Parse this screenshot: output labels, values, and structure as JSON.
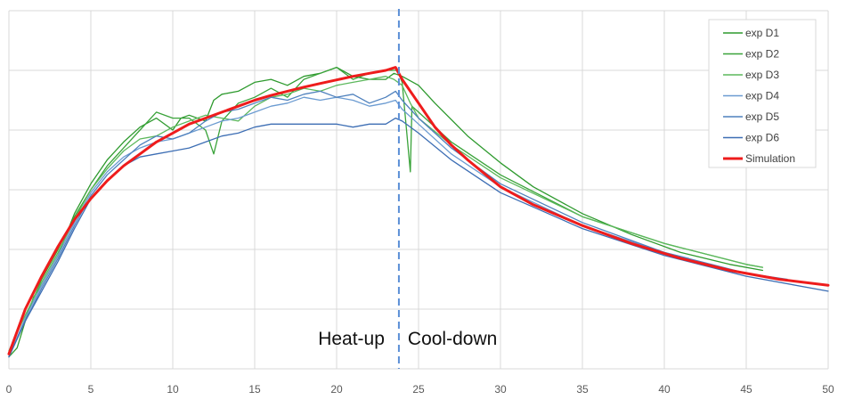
{
  "chart_data": {
    "type": "line",
    "title": "",
    "xlabel": "",
    "ylabel": "",
    "xlim": [
      0,
      50
    ],
    "x_ticks": [
      0,
      5,
      10,
      15,
      20,
      25,
      30,
      35,
      40,
      45,
      50
    ],
    "ylim": [
      0,
      6
    ],
    "y_tick_labels_shown": false,
    "grid": true,
    "legend_position": "top-right",
    "annotations": {
      "phase_divider_x": 23.8,
      "heat_up_label": "Heat-up",
      "cool_down_label": "Cool-down"
    },
    "series": [
      {
        "name": "exp D1",
        "color": "#2e9a2e",
        "points": [
          [
            0,
            0.2
          ],
          [
            0.5,
            0.35
          ],
          [
            1,
            0.8
          ],
          [
            1.5,
            1.2
          ],
          [
            2,
            1.4
          ],
          [
            3,
            1.9
          ],
          [
            4,
            2.6
          ],
          [
            5,
            3.1
          ],
          [
            6,
            3.5
          ],
          [
            7,
            3.8
          ],
          [
            8,
            4.05
          ],
          [
            9,
            4.2
          ],
          [
            10,
            4.0
          ],
          [
            10.5,
            4.2
          ],
          [
            11,
            4.25
          ],
          [
            12,
            4.15
          ],
          [
            12.5,
            4.5
          ],
          [
            13,
            4.6
          ],
          [
            14,
            4.65
          ],
          [
            15,
            4.8
          ],
          [
            16,
            4.85
          ],
          [
            17,
            4.75
          ],
          [
            18,
            4.9
          ],
          [
            19,
            4.95
          ],
          [
            20,
            5.05
          ],
          [
            21,
            4.9
          ],
          [
            22,
            4.85
          ],
          [
            23,
            4.85
          ],
          [
            23.5,
            4.95
          ],
          [
            24,
            4.9
          ],
          [
            25,
            4.75
          ],
          [
            26,
            4.45
          ],
          [
            28,
            3.9
          ],
          [
            30,
            3.45
          ],
          [
            32,
            3.05
          ],
          [
            35,
            2.6
          ],
          [
            38,
            2.25
          ],
          [
            41,
            1.95
          ],
          [
            44,
            1.75
          ],
          [
            46,
            1.65
          ]
        ]
      },
      {
        "name": "exp D2",
        "color": "#3aa33a",
        "points": [
          [
            0,
            0.25
          ],
          [
            0.5,
            0.5
          ],
          [
            1,
            0.85
          ],
          [
            2,
            1.5
          ],
          [
            3,
            2.0
          ],
          [
            4,
            2.55
          ],
          [
            5,
            3.0
          ],
          [
            6,
            3.4
          ],
          [
            7,
            3.7
          ],
          [
            8,
            4.0
          ],
          [
            9,
            4.3
          ],
          [
            10,
            4.2
          ],
          [
            11,
            4.2
          ],
          [
            12,
            4.0
          ],
          [
            12.5,
            3.6
          ],
          [
            13,
            4.15
          ],
          [
            14,
            4.45
          ],
          [
            15,
            4.55
          ],
          [
            16,
            4.7
          ],
          [
            17,
            4.55
          ],
          [
            18,
            4.85
          ],
          [
            19,
            4.95
          ],
          [
            20,
            5.05
          ],
          [
            21,
            4.85
          ],
          [
            22,
            4.95
          ],
          [
            23,
            5.0
          ],
          [
            23.7,
            5.0
          ],
          [
            24,
            4.8
          ],
          [
            24.5,
            3.3
          ],
          [
            24.6,
            4.4
          ],
          [
            25,
            4.3
          ],
          [
            27,
            3.8
          ],
          [
            30,
            3.25
          ],
          [
            35,
            2.55
          ],
          [
            40,
            2.1
          ],
          [
            45,
            1.75
          ],
          [
            46,
            1.7
          ]
        ]
      },
      {
        "name": "exp D3",
        "color": "#5cb85c",
        "points": [
          [
            0,
            0.3
          ],
          [
            1,
            0.9
          ],
          [
            2,
            1.45
          ],
          [
            3,
            1.95
          ],
          [
            4,
            2.5
          ],
          [
            5,
            3.0
          ],
          [
            6,
            3.35
          ],
          [
            7,
            3.65
          ],
          [
            8,
            3.85
          ],
          [
            9,
            3.9
          ],
          [
            10,
            4.05
          ],
          [
            11,
            4.15
          ],
          [
            12,
            4.25
          ],
          [
            13,
            4.2
          ],
          [
            14,
            4.15
          ],
          [
            15,
            4.4
          ],
          [
            16,
            4.55
          ],
          [
            17,
            4.6
          ],
          [
            18,
            4.7
          ],
          [
            19,
            4.65
          ],
          [
            20,
            4.75
          ],
          [
            21,
            4.8
          ],
          [
            22,
            4.85
          ],
          [
            23,
            4.9
          ],
          [
            23.5,
            4.85
          ],
          [
            24,
            4.75
          ],
          [
            24.5,
            4.45
          ],
          [
            25,
            4.2
          ],
          [
            27,
            3.75
          ],
          [
            30,
            3.2
          ],
          [
            35,
            2.55
          ],
          [
            40,
            2.1
          ],
          [
            45,
            1.75
          ],
          [
            46,
            1.7
          ]
        ]
      },
      {
        "name": "exp D4",
        "color": "#6b9bd1",
        "points": [
          [
            0,
            0.2
          ],
          [
            1,
            0.85
          ],
          [
            2,
            1.4
          ],
          [
            3,
            1.9
          ],
          [
            4,
            2.45
          ],
          [
            5,
            2.95
          ],
          [
            6,
            3.3
          ],
          [
            7,
            3.55
          ],
          [
            8,
            3.7
          ],
          [
            9,
            3.8
          ],
          [
            10,
            3.85
          ],
          [
            11,
            3.95
          ],
          [
            12,
            4.05
          ],
          [
            13,
            4.15
          ],
          [
            14,
            4.2
          ],
          [
            15,
            4.3
          ],
          [
            16,
            4.4
          ],
          [
            17,
            4.45
          ],
          [
            18,
            4.55
          ],
          [
            19,
            4.5
          ],
          [
            20,
            4.55
          ],
          [
            21,
            4.5
          ],
          [
            22,
            4.4
          ],
          [
            23,
            4.45
          ],
          [
            23.6,
            4.5
          ],
          [
            24,
            4.35
          ],
          [
            25,
            4.1
          ],
          [
            27,
            3.6
          ],
          [
            30,
            3.05
          ],
          [
            35,
            2.4
          ],
          [
            40,
            1.95
          ],
          [
            41.5,
            1.85
          ]
        ]
      },
      {
        "name": "exp D5",
        "color": "#4f81bd",
        "points": [
          [
            0,
            0.2
          ],
          [
            1,
            0.8
          ],
          [
            2,
            1.35
          ],
          [
            3,
            1.85
          ],
          [
            4,
            2.4
          ],
          [
            5,
            2.9
          ],
          [
            6,
            3.25
          ],
          [
            7,
            3.5
          ],
          [
            8,
            3.75
          ],
          [
            9,
            3.9
          ],
          [
            10,
            3.85
          ],
          [
            11,
            3.95
          ],
          [
            12,
            4.15
          ],
          [
            13,
            4.3
          ],
          [
            14,
            4.35
          ],
          [
            15,
            4.45
          ],
          [
            16,
            4.55
          ],
          [
            17,
            4.5
          ],
          [
            18,
            4.6
          ],
          [
            19,
            4.65
          ],
          [
            20,
            4.55
          ],
          [
            21,
            4.6
          ],
          [
            22,
            4.45
          ],
          [
            23,
            4.55
          ],
          [
            23.6,
            4.65
          ],
          [
            24,
            4.5
          ],
          [
            25,
            4.2
          ],
          [
            27,
            3.7
          ],
          [
            30,
            3.1
          ],
          [
            35,
            2.45
          ],
          [
            40,
            1.95
          ],
          [
            45,
            1.6
          ],
          [
            47.5,
            1.5
          ]
        ]
      },
      {
        "name": "exp D6",
        "color": "#3d6eb4",
        "points": [
          [
            0,
            0.2
          ],
          [
            1,
            0.8
          ],
          [
            2,
            1.3
          ],
          [
            3,
            1.8
          ],
          [
            4,
            2.35
          ],
          [
            5,
            2.85
          ],
          [
            6,
            3.15
          ],
          [
            7,
            3.4
          ],
          [
            8,
            3.55
          ],
          [
            9,
            3.6
          ],
          [
            10,
            3.65
          ],
          [
            11,
            3.7
          ],
          [
            12,
            3.8
          ],
          [
            13,
            3.9
          ],
          [
            14,
            3.95
          ],
          [
            15,
            4.05
          ],
          [
            16,
            4.1
          ],
          [
            17,
            4.1
          ],
          [
            18,
            4.1
          ],
          [
            19,
            4.1
          ],
          [
            20,
            4.1
          ],
          [
            21,
            4.05
          ],
          [
            22,
            4.1
          ],
          [
            23,
            4.1
          ],
          [
            23.6,
            4.2
          ],
          [
            24,
            4.15
          ],
          [
            25,
            3.95
          ],
          [
            27,
            3.5
          ],
          [
            30,
            2.95
          ],
          [
            35,
            2.35
          ],
          [
            40,
            1.9
          ],
          [
            45,
            1.55
          ],
          [
            50,
            1.3
          ]
        ]
      },
      {
        "name": "Simulation",
        "color": "#ee1c1c",
        "points": [
          [
            0,
            0.25
          ],
          [
            1,
            1.0
          ],
          [
            2,
            1.55
          ],
          [
            3,
            2.05
          ],
          [
            4,
            2.5
          ],
          [
            5,
            2.85
          ],
          [
            6,
            3.15
          ],
          [
            7,
            3.4
          ],
          [
            8,
            3.6
          ],
          [
            9,
            3.8
          ],
          [
            10,
            3.95
          ],
          [
            11,
            4.1
          ],
          [
            12,
            4.2
          ],
          [
            13,
            4.3
          ],
          [
            14,
            4.4
          ],
          [
            15,
            4.5
          ],
          [
            16,
            4.58
          ],
          [
            17,
            4.65
          ],
          [
            18,
            4.72
          ],
          [
            19,
            4.78
          ],
          [
            20,
            4.84
          ],
          [
            21,
            4.9
          ],
          [
            22,
            4.95
          ],
          [
            23,
            5.0
          ],
          [
            23.6,
            5.05
          ],
          [
            24,
            4.85
          ],
          [
            25,
            4.45
          ],
          [
            26,
            4.05
          ],
          [
            27,
            3.75
          ],
          [
            28,
            3.5
          ],
          [
            30,
            3.05
          ],
          [
            32,
            2.75
          ],
          [
            35,
            2.4
          ],
          [
            38,
            2.1
          ],
          [
            41,
            1.85
          ],
          [
            44,
            1.65
          ],
          [
            47,
            1.5
          ],
          [
            50,
            1.4
          ]
        ]
      }
    ]
  }
}
